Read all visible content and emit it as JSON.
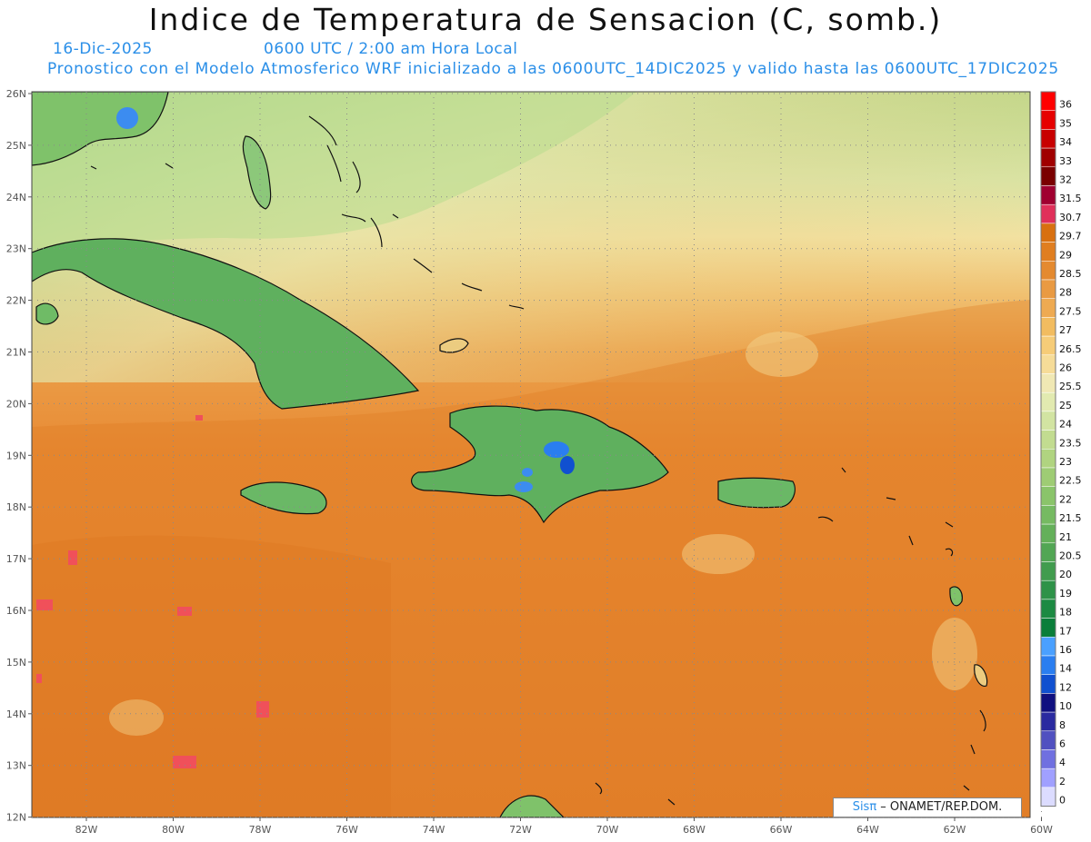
{
  "header": {
    "title": "Indice de Temperatura de Sensacion (C, somb.)",
    "date": "16-Dic-2025",
    "time": "0600 UTC / 2:00 am Hora Local",
    "model_info": "Pronostico con el Modelo Atmosferico WRF inicializado a las 0600UTC_14DIC2025 y valido hasta las  0600UTC_17DIC2025"
  },
  "axes": {
    "lat_labels": [
      "26N",
      "25N",
      "24N",
      "23N",
      "22N",
      "21N",
      "20N",
      "19N",
      "18N",
      "17N",
      "16N",
      "15N",
      "14N",
      "13N",
      "12N"
    ],
    "lon_labels": [
      "82W",
      "80W",
      "78W",
      "76W",
      "74W",
      "72W",
      "70W",
      "68W",
      "66W",
      "64W",
      "62W",
      "60W"
    ]
  },
  "colorbar": {
    "labels": [
      "36",
      "35",
      "34",
      "33",
      "32",
      "31.5",
      "30.7",
      "29.7",
      "29",
      "28.5",
      "28",
      "27.5",
      "27",
      "26.5",
      "26",
      "25.5",
      "25",
      "24",
      "23.5",
      "23",
      "22.5",
      "22",
      "21.5",
      "21",
      "20.5",
      "20",
      "19",
      "18",
      "17",
      "16",
      "14",
      "12",
      "10",
      "8",
      "6",
      "4",
      "2",
      "0"
    ],
    "colors": [
      "#ff0000",
      "#e60000",
      "#c80000",
      "#a00000",
      "#7a0000",
      "#a00030",
      "#e0305a",
      "#d87010",
      "#e07e20",
      "#e48a30",
      "#e99a42",
      "#eeaa52",
      "#f2bc60",
      "#f6cc78",
      "#f6dc98",
      "#f0e8b4",
      "#e2eab0",
      "#d2e4a2",
      "#c2dc90",
      "#b0d480",
      "#9ecc74",
      "#8ac46a",
      "#76ba62",
      "#64b05a",
      "#52a654",
      "#419c4e",
      "#2e9248",
      "#1c8a42",
      "#0a7e3a",
      "#4aa0ff",
      "#2a7ef0",
      "#1050d0",
      "#101080",
      "#2a2aa0",
      "#5050c0",
      "#7070e0",
      "#a0a0ff",
      "#dcdcff"
    ],
    "color_map": "heat index scale: blues below 17, greens 17-26, yellows/oranges 26-29.7, reds above 29.7"
  },
  "credit": {
    "sis": "Sisπ",
    "text": " – ONAMET/REP.DOM."
  }
}
